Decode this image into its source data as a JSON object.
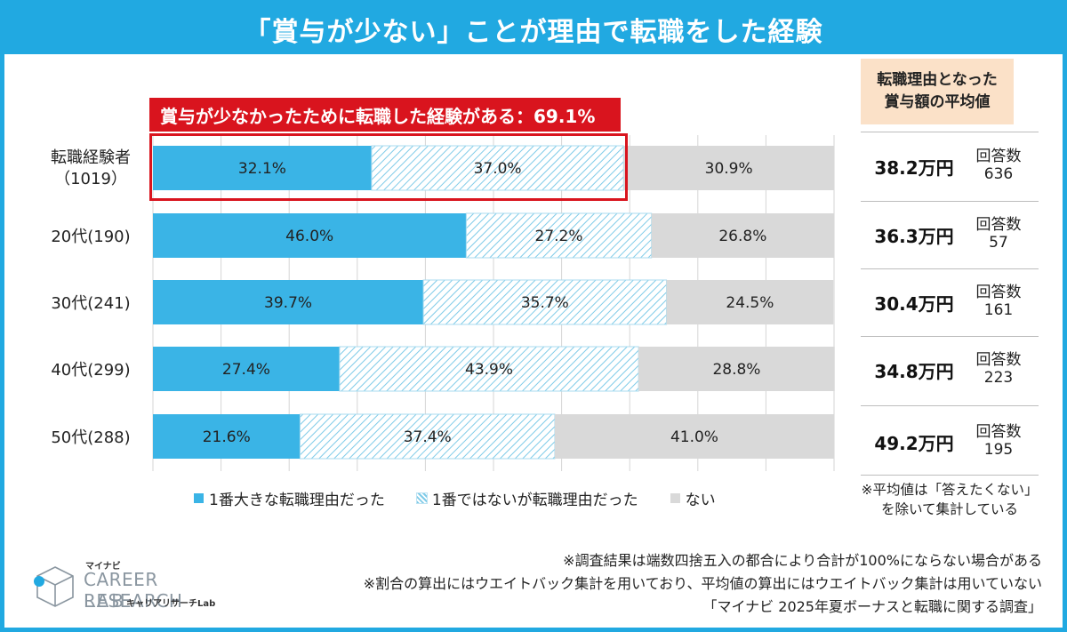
{
  "title": "「賞与が少ない」ことが理由で転職をした経験",
  "highlight_text": "賞与が少なかったために転職した経験がある：69.1%",
  "chart_data": {
    "type": "bar",
    "orientation": "horizontal",
    "stacked": true,
    "title": "「賞与が少ない」ことが理由で転職をした経験",
    "categories": [
      [
        "転職経験者",
        "（1019）"
      ],
      [
        "20代(190)"
      ],
      [
        "30代(241)"
      ],
      [
        "40代(299)"
      ],
      [
        "50代(288)"
      ]
    ],
    "series": [
      {
        "name": "1番大きな転職理由だった",
        "values": [
          32.1,
          46.0,
          39.7,
          27.4,
          21.6
        ],
        "color": "#3ab4e6",
        "pattern": "solid"
      },
      {
        "name": "1番ではないが転職理由だった",
        "values": [
          37.0,
          27.2,
          35.7,
          43.9,
          37.4
        ],
        "color": "#7fcbe8",
        "pattern": "hatched"
      },
      {
        "name": "ない",
        "values": [
          30.9,
          26.8,
          24.5,
          28.8,
          41.0
        ],
        "color": "#d9d9d9",
        "pattern": "solid"
      }
    ],
    "xlim": [
      0,
      100
    ],
    "unit": "%",
    "grid": true,
    "legend_position": "bottom"
  },
  "avg_panel": {
    "header_line1": "転職理由となった",
    "header_line2": "賞与額の平均値",
    "rows": [
      {
        "value": "38.2万円",
        "n_label": "回答数",
        "n": "636"
      },
      {
        "value": "36.3万円",
        "n_label": "回答数",
        "n": "57"
      },
      {
        "value": "30.4万円",
        "n_label": "回答数",
        "n": "161"
      },
      {
        "value": "34.8万円",
        "n_label": "回答数",
        "n": "223"
      },
      {
        "value": "49.2万円",
        "n_label": "回答数",
        "n": "195"
      }
    ],
    "note_line1": "※平均値は「答えたくない」",
    "note_line2": "を除いて集計している"
  },
  "footnotes": [
    "※調査結果は端数四捨五入の都合により合計が100%にならない場合がある",
    "※割合の算出にはウエイトバック集計を用いており、平均値の算出にはウエイトバック集計は用いていない",
    "「マイナビ 2025年夏ボーナスと転職に関する調査」"
  ],
  "logo": {
    "top": "マイナビ",
    "main": "CAREER RESEARCH",
    "lab": "LAB",
    "sub": "キャリアリサーチLab",
    "icon": "cube-logo-icon"
  },
  "colors": {
    "accent": "#21a9e1",
    "highlight": "#d9141e",
    "header_bg": "#fbe1c8"
  }
}
